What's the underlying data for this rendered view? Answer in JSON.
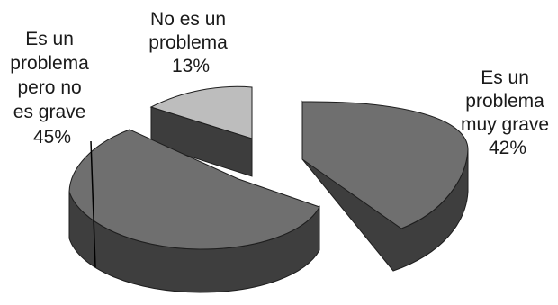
{
  "chart_data": {
    "type": "pie",
    "style": "3d-exploded",
    "title": "",
    "slices": [
      {
        "label": "No es un problema",
        "value": 13,
        "display": [
          "No es un",
          "problema",
          "13%"
        ],
        "color": "#bdbdbd"
      },
      {
        "label": "Es un problema muy grave",
        "value": 42,
        "display": [
          "Es un",
          "problema",
          "muy grave",
          "42%"
        ],
        "color": "#6f6f6f"
      },
      {
        "label": "Es un problema pero no es grave",
        "value": 45,
        "display": [
          "Es un",
          "problema",
          "pero no",
          "es grave",
          "45%"
        ],
        "color": "#6f6f6f"
      }
    ]
  }
}
